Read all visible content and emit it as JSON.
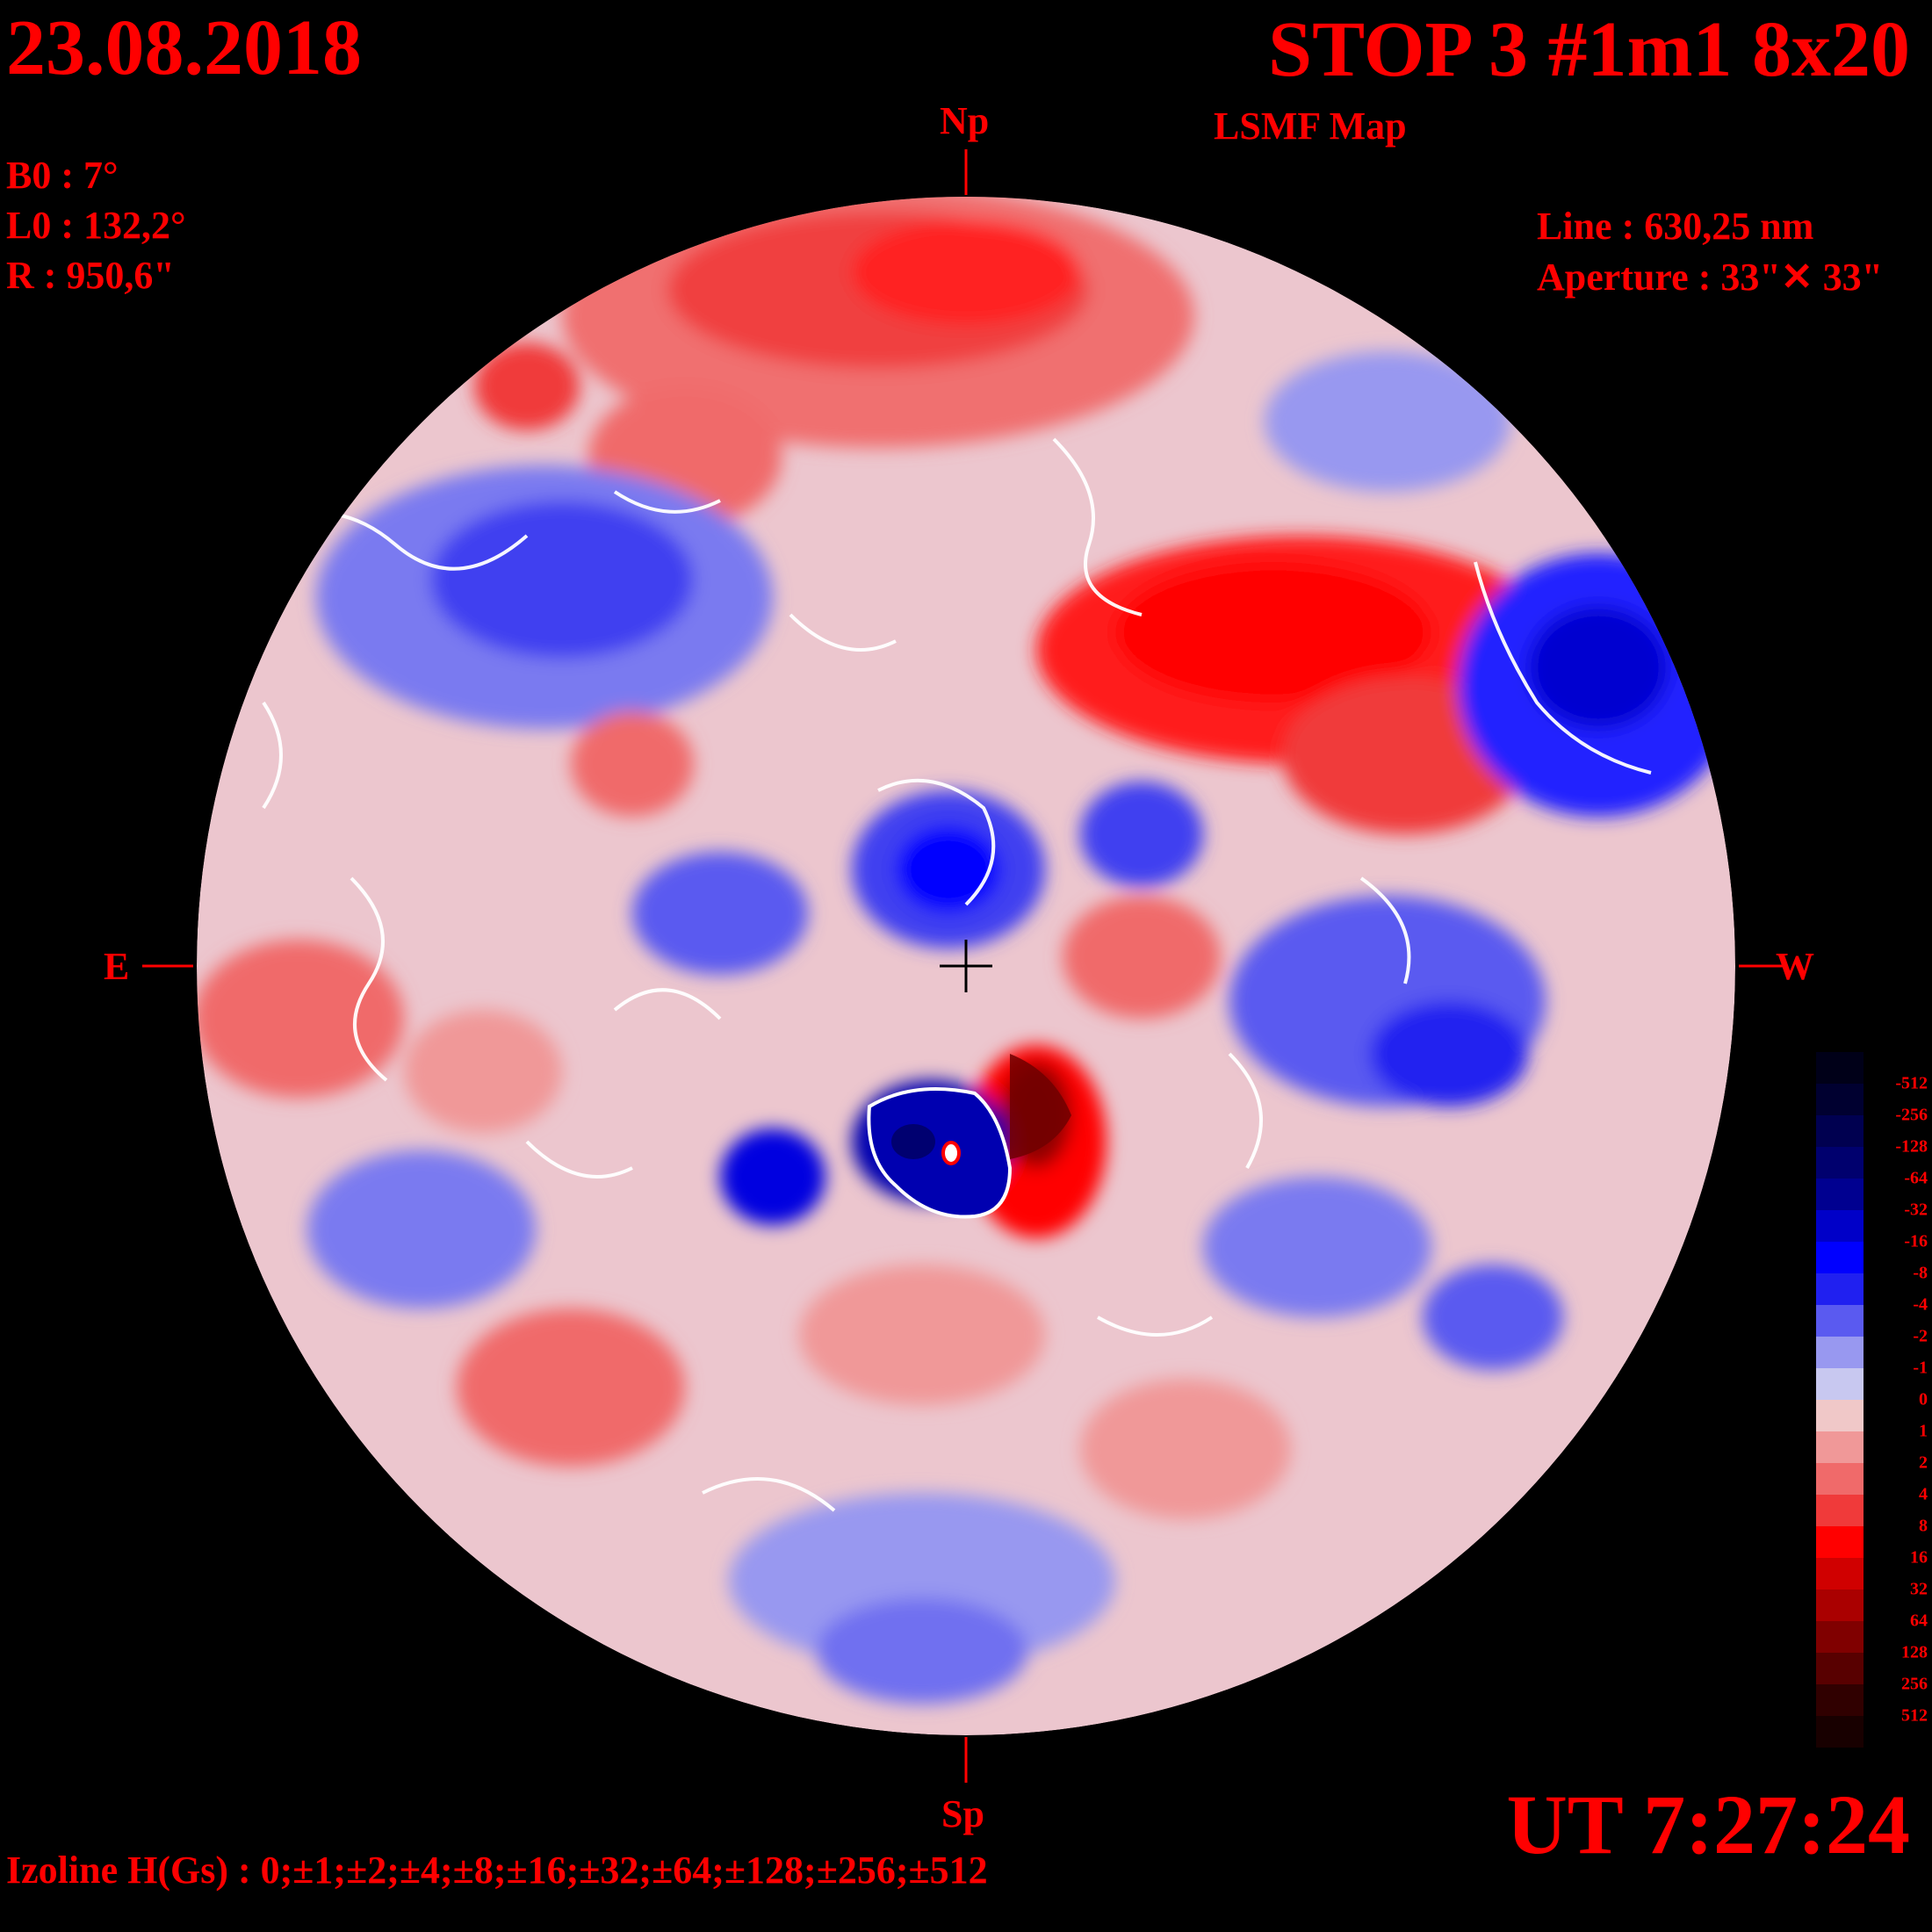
{
  "date": "23.08.2018",
  "title": "STOP 3 #1m1 8x20",
  "subtitle": "LSMF  Map",
  "params": {
    "b0": "B0 : 7°",
    "l0": "L0 : 132,2°",
    "r": "R  : 950,6\""
  },
  "instrument": {
    "line": "Line :  630,25 nm",
    "aperture": "Aperture : 33\"✕ 33\""
  },
  "directions": {
    "north": "Np",
    "south": "Sp",
    "east": "E",
    "west": "W"
  },
  "time": "UT 7:27:24",
  "izoline": "Izoline H(Gs) : 0;±1;±2;±4;±8;±16;±32;±64;±128;±256;±512",
  "colorbar": {
    "labels": [
      "-512",
      "-256",
      "-128",
      "-64",
      "-32",
      "-16",
      "-8",
      "-4",
      "-2",
      "-1",
      "0",
      "1",
      "2",
      "4",
      "8",
      "16",
      "32",
      "64",
      "128",
      "256",
      "512"
    ],
    "colors": [
      "#000018",
      "#000030",
      "#000050",
      "#00006e",
      "#000090",
      "#0000c8",
      "#0000ff",
      "#2020f0",
      "#5a5af0",
      "#9898f0",
      "#c8c8f0",
      "#f0c8c8",
      "#f09898",
      "#f06a6a",
      "#f03a3a",
      "#ff0000",
      "#d00000",
      "#aa0000",
      "#800000",
      "#580000",
      "#300000",
      "#180000"
    ]
  },
  "map_features": {
    "positive_color": "#ff0000",
    "negative_color": "#0000ff",
    "contour_color": "#ffffff",
    "background": "#000000"
  }
}
